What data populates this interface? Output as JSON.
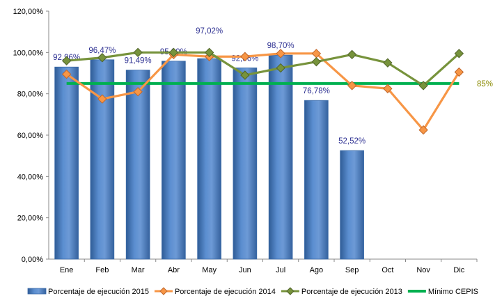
{
  "chart_data": {
    "type": "bar",
    "categories": [
      "Ene",
      "Feb",
      "Mar",
      "Abr",
      "May",
      "Jun",
      "Jul",
      "Ago",
      "Sep",
      "Oct",
      "Nov",
      "Dic"
    ],
    "ylim": [
      0,
      120
    ],
    "yticks": [
      "0,00%",
      "20,00%",
      "40,00%",
      "60,00%",
      "80,00%",
      "100,00%",
      "120,00%"
    ],
    "yticks_values": [
      0,
      20,
      40,
      60,
      80,
      100,
      120
    ],
    "grid": false,
    "legend_position": "bottom",
    "series": [
      {
        "name": "Porcentaje de ejecución 2015",
        "type": "bar",
        "color": "#4f81bd",
        "values": [
          92.96,
          96.47,
          91.49,
          95.8,
          97.02,
          92.56,
          98.7,
          76.78,
          52.52,
          null,
          null,
          null
        ],
        "labels": [
          "92,96%",
          "96,47%",
          "91,49%",
          "95,80%",
          "97,02%",
          "92,56%",
          "98,70%",
          "76,78%",
          "52,52%",
          "",
          "",
          ""
        ]
      },
      {
        "name": "Porcentaje de ejecución 2014",
        "type": "line",
        "color": "#f79646",
        "values": [
          89.5,
          77.5,
          81,
          99,
          98,
          98,
          99.5,
          99.5,
          84,
          82.5,
          62.5,
          90.5
        ]
      },
      {
        "name": "Porcentaje de ejecución 2013",
        "type": "line",
        "color": "#77933c",
        "values": [
          96,
          97.5,
          100,
          100,
          100,
          89,
          92.5,
          95.5,
          99,
          95,
          84,
          99.5
        ]
      },
      {
        "name": "Mínimo CEPIS",
        "type": "reference",
        "color": "#00b050",
        "value": 85,
        "label": "85%"
      }
    ]
  }
}
